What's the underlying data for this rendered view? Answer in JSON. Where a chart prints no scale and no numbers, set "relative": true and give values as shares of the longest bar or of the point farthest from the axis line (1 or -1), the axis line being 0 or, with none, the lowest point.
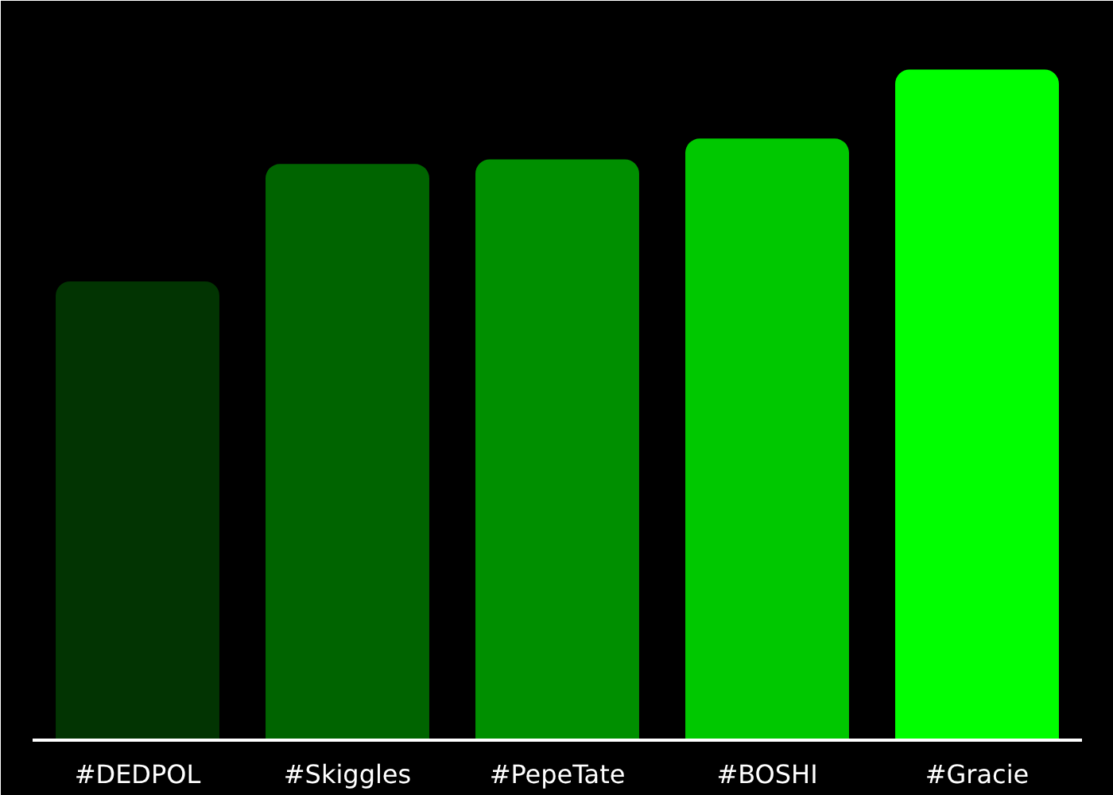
{
  "chart_data": {
    "type": "bar",
    "relative": true,
    "categories": [
      "#DEDPOL",
      "#Skiggles",
      "#PepeTate",
      "#BOSHI",
      "#Gracie"
    ],
    "values": [
      0.684,
      0.859,
      0.866,
      0.897,
      1
    ],
    "colors": [
      "#023402",
      "#006400",
      "#008f00",
      "#00c800",
      "#00ff00"
    ]
  }
}
